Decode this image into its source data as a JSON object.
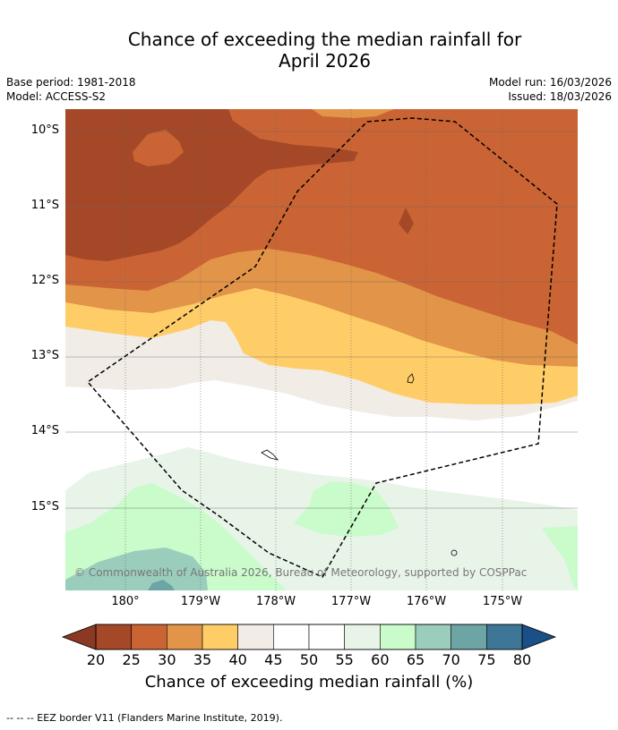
{
  "title_line1": "Chance of exceeding the median rainfall for",
  "title_line2": "April 2026",
  "base_period": "Base period: 1981-2018",
  "model": "Model: ACCESS-S2",
  "model_run": "Model run: 16/03/2026",
  "issued": "Issued: 18/03/2026",
  "lat_labels": [
    "10°S",
    "11°S",
    "12°S",
    "13°S",
    "14°S",
    "15°S"
  ],
  "lon_labels": [
    "180°",
    "179°W",
    "178°W",
    "177°W",
    "176°W",
    "175°W"
  ],
  "copyright": "© Commonwealth of Australia 2026, Bureau of Meteorology, supported by COSPPac",
  "colorbar": {
    "ticks": [
      "20",
      "25",
      "30",
      "35",
      "40",
      "45",
      "50",
      "55",
      "60",
      "65",
      "70",
      "75",
      "80"
    ],
    "label": "Chance of exceeding median rainfall (%)",
    "colors": [
      "#a54827",
      "#cb6434",
      "#e29448",
      "#ffcd68",
      "#f1ece5",
      "#ffffff",
      "#ffffff",
      "#e9f4e9",
      "#c9fbcb",
      "#9bcdbc",
      "#6da4a4",
      "#3e7697"
    ],
    "under_color": "#8b3923",
    "over_color": "#1a4f88"
  },
  "footer": "--  --  -- EEZ border V11 (Flanders Marine Institute, 2019)."
}
